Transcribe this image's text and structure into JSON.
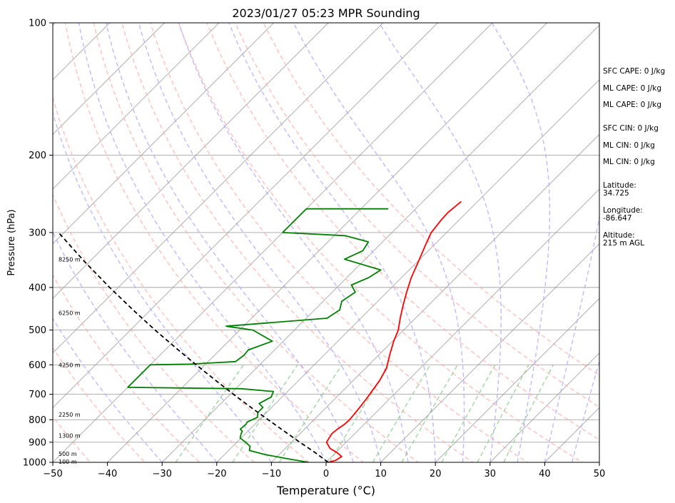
{
  "chart_data": {
    "type": "skew-t",
    "title": "2023/01/27 05:23 MPR Sounding",
    "xlabel": "Temperature (°C)",
    "ylabel": "Pressure (hPa)",
    "xlim": [
      -50,
      50
    ],
    "ylim_hpa": [
      1000,
      100
    ],
    "y_scale": "log",
    "x_ticks": [
      -50,
      -40,
      -30,
      -20,
      -10,
      0,
      10,
      20,
      30,
      40,
      50
    ],
    "y_ticks": [
      1000,
      900,
      800,
      700,
      600,
      500,
      400,
      300,
      200,
      100
    ],
    "isobars_gridlines": [
      1000,
      900,
      800,
      700,
      600,
      500,
      400,
      300,
      200
    ],
    "isotherm_temps": [
      -160,
      -150,
      -140,
      -130,
      -120,
      -110,
      -100,
      -90,
      -80,
      -70,
      -60,
      -50,
      -40,
      -30,
      -20,
      -10,
      0,
      10,
      20,
      30,
      40,
      50
    ],
    "dry_adiabat_thetas": [
      230,
      240,
      250,
      260,
      270,
      280,
      290,
      300,
      310,
      320,
      330,
      340,
      350
    ],
    "moist_adiabat_starts": [
      -30,
      -20,
      -10,
      0,
      5,
      10,
      15,
      20,
      25,
      30,
      35,
      40,
      45
    ],
    "mixing_ratios_gkg": [
      0.4,
      1,
      2,
      4,
      7,
      10,
      16,
      24,
      32
    ],
    "line_colors": {
      "temperature": "#ff0000",
      "dewpoint": "#008000",
      "parcel": "#000000",
      "dry_adiabats": "#ffaaaa",
      "moist_adiabats": "#aaaaff",
      "mixing_ratio": "#88cc88",
      "isotherms": "#888888",
      "isobars": "#888888"
    },
    "series": [
      {
        "name": "temperature",
        "points": [
          [
            1000,
            0.4
          ],
          [
            990,
            1.4
          ],
          [
            970,
            1.8
          ],
          [
            950,
            0.2
          ],
          [
            930,
            -1.8
          ],
          [
            900,
            -3.6
          ],
          [
            860,
            -4.2
          ],
          [
            840,
            -4.0
          ],
          [
            820,
            -3.6
          ],
          [
            800,
            -3.5
          ],
          [
            760,
            -3.8
          ],
          [
            720,
            -4.2
          ],
          [
            690,
            -4.6
          ],
          [
            650,
            -5.2
          ],
          [
            610,
            -6.2
          ],
          [
            570,
            -8.0
          ],
          [
            530,
            -9.8
          ],
          [
            500,
            -11.0
          ],
          [
            470,
            -12.8
          ],
          [
            440,
            -14.6
          ],
          [
            410,
            -16.4
          ],
          [
            380,
            -18.2
          ],
          [
            350,
            -19.8
          ],
          [
            320,
            -21.6
          ],
          [
            300,
            -22.8
          ],
          [
            280,
            -23.3
          ],
          [
            270,
            -23.4
          ],
          [
            255,
            -23.0
          ]
        ]
      },
      {
        "name": "dewpoint",
        "points": [
          [
            1000,
            -3.2
          ],
          [
            980,
            -8.0
          ],
          [
            960,
            -12.6
          ],
          [
            940,
            -16.2
          ],
          [
            920,
            -16.8
          ],
          [
            900,
            -18.4
          ],
          [
            880,
            -20.2
          ],
          [
            860,
            -20.8
          ],
          [
            850,
            -21.0
          ],
          [
            840,
            -21.8
          ],
          [
            820,
            -21.6
          ],
          [
            810,
            -21.8
          ],
          [
            790,
            -20.8
          ],
          [
            770,
            -21.6
          ],
          [
            750,
            -21.6
          ],
          [
            735,
            -23.0
          ],
          [
            710,
            -22.0
          ],
          [
            690,
            -22.6
          ],
          [
            680,
            -29.0
          ],
          [
            675,
            -50
          ],
          [
            600,
            -50
          ],
          [
            598,
            -43.0
          ],
          [
            590,
            -35.0
          ],
          [
            570,
            -34.6
          ],
          [
            555,
            -34.8
          ],
          [
            530,
            -32.0
          ],
          [
            500,
            -37.6
          ],
          [
            490,
            -43.2
          ],
          [
            470,
            -26.2
          ],
          [
            450,
            -25.4
          ],
          [
            430,
            -26.6
          ],
          [
            410,
            -25.8
          ],
          [
            395,
            -27.8
          ],
          [
            380,
            -26.0
          ],
          [
            365,
            -25.2
          ],
          [
            345,
            -33.8
          ],
          [
            330,
            -32.0
          ],
          [
            315,
            -32.6
          ],
          [
            305,
            -38.0
          ],
          [
            300,
            -50
          ],
          [
            265,
            -50
          ],
          [
            265,
            -35.0
          ]
        ]
      },
      {
        "name": "parcel",
        "points": [
          [
            1000,
            0.4
          ],
          [
            950,
            -3.8
          ],
          [
            900,
            -8.5
          ],
          [
            850,
            -13.3
          ],
          [
            800,
            -18.4
          ],
          [
            750,
            -23.8
          ],
          [
            700,
            -29.4
          ],
          [
            650,
            -35.3
          ],
          [
            600,
            -41.6
          ],
          [
            550,
            -48.3
          ],
          [
            500,
            -55.5
          ],
          [
            450,
            -63.2
          ],
          [
            400,
            -71.6
          ],
          [
            350,
            -80.8
          ],
          [
            300,
            -91.0
          ]
        ]
      }
    ],
    "height_markers": [
      {
        "label": "100 m",
        "pressure": 997
      },
      {
        "label": "500 m",
        "pressure": 956
      },
      {
        "label": "1300 m",
        "pressure": 870
      },
      {
        "label": "2250 m",
        "pressure": 778
      },
      {
        "label": "4250 m",
        "pressure": 600
      },
      {
        "label": "6250 m",
        "pressure": 457
      },
      {
        "label": "8250 m",
        "pressure": 345
      }
    ],
    "annotations": [
      {
        "text": "SFC CAPE: 0 J/kg"
      },
      {
        "text": "ML CAPE: 0 J/kg"
      },
      {
        "text": "ML CAPE: 0 J/kg"
      },
      {
        "text": "SFC CIN: 0 J/kg"
      },
      {
        "text": "ML CIN: 0 J/kg"
      },
      {
        "text": "ML CIN: 0 J/kg"
      },
      {
        "text": "Latitude:\n34.725"
      },
      {
        "text": "Longitude:\n-86.647"
      },
      {
        "text": "Altitude:\n215 m AGL"
      }
    ]
  }
}
